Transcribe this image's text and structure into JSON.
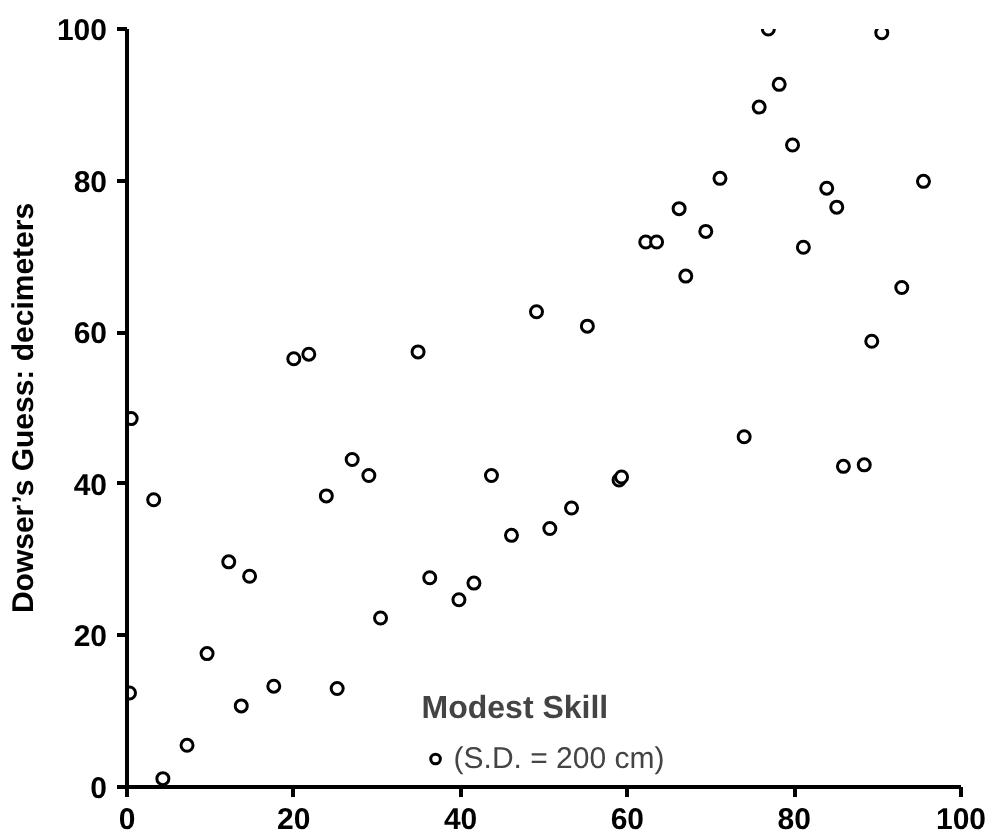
{
  "chart_data": {
    "type": "scatter",
    "ylabel": "Dowser’s Guess: decimeters",
    "legend_title": "Modest Skill",
    "xlim": [
      0,
      100
    ],
    "ylim": [
      0,
      100
    ],
    "xticks": [
      0,
      20,
      40,
      60,
      80,
      100
    ],
    "yticks": [
      0,
      20,
      40,
      60,
      80,
      100
    ],
    "grid": false,
    "legend": "bottom",
    "marker": "circle",
    "series": [
      {
        "name": "(S.D. = 200 cm)",
        "color": "#000000",
        "x": [
          0.3,
          0.5,
          3.2,
          4.3,
          7.2,
          9.6,
          12.2,
          14.7,
          13.7,
          17.6,
          23.9,
          25.2,
          27,
          29,
          30.4,
          36.3,
          39.8,
          41.6,
          43.7,
          46.1,
          50.7,
          53.3,
          59,
          59.3,
          74,
          85.9,
          88.4,
          20,
          21.8,
          34.9,
          49.1,
          76.9,
          90.5,
          78.2,
          75.8,
          79.8,
          71.1,
          66.2,
          69.4,
          62.2,
          63.5,
          67,
          83.9,
          85.1,
          95.5,
          81.1,
          92.9,
          55.2,
          89.3
        ],
        "values": [
          12.4,
          48.6,
          37.9,
          1.1,
          5.5,
          17.6,
          29.7,
          27.8,
          10.7,
          13.3,
          38.4,
          13,
          43.2,
          41.1,
          22.3,
          27.6,
          24.7,
          26.9,
          41.1,
          33.2,
          34.1,
          36.8,
          40.5,
          40.9,
          46.2,
          42.3,
          42.5,
          56.5,
          57.1,
          57.4,
          62.7,
          100,
          99.5,
          92.7,
          89.7,
          84.7,
          80.3,
          76.3,
          73.3,
          71.9,
          71.9,
          67.4,
          79,
          76.5,
          79.9,
          71.2,
          65.9,
          60.8,
          58.8
        ]
      }
    ]
  }
}
